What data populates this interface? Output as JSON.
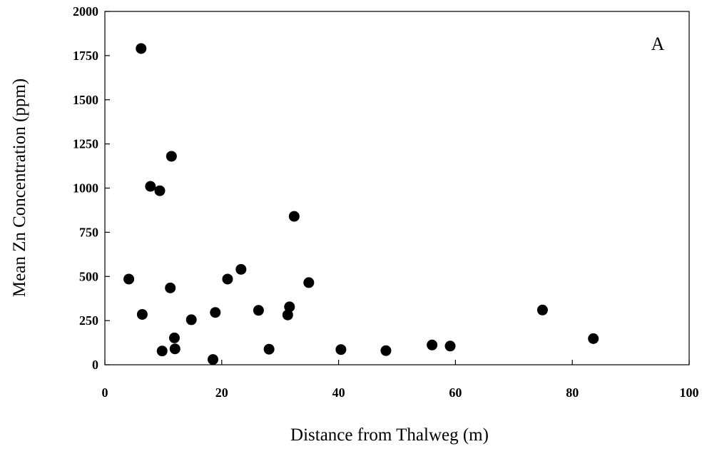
{
  "chart_data": {
    "type": "scatter",
    "panel_label": "A",
    "xlabel": "Distance from Thalweg (m)",
    "ylabel": "Mean Zn Concentration (ppm)",
    "xlim": [
      0,
      100
    ],
    "ylim": [
      0,
      2000
    ],
    "x_ticks": [
      0,
      20,
      40,
      60,
      80,
      100
    ],
    "y_ticks": [
      0,
      250,
      500,
      750,
      1000,
      1250,
      1500,
      1750,
      2000
    ],
    "grid": false,
    "marker_color": "#000000",
    "points": [
      {
        "x": 6.2,
        "y": 1790
      },
      {
        "x": 11.4,
        "y": 1180
      },
      {
        "x": 7.8,
        "y": 1010
      },
      {
        "x": 9.4,
        "y": 985
      },
      {
        "x": 32.4,
        "y": 840
      },
      {
        "x": 23.3,
        "y": 540
      },
      {
        "x": 4.1,
        "y": 485
      },
      {
        "x": 21.0,
        "y": 485
      },
      {
        "x": 34.9,
        "y": 465
      },
      {
        "x": 11.2,
        "y": 435
      },
      {
        "x": 31.6,
        "y": 328
      },
      {
        "x": 26.3,
        "y": 308
      },
      {
        "x": 74.9,
        "y": 310
      },
      {
        "x": 18.9,
        "y": 296
      },
      {
        "x": 6.4,
        "y": 285
      },
      {
        "x": 31.3,
        "y": 282
      },
      {
        "x": 14.8,
        "y": 255
      },
      {
        "x": 11.9,
        "y": 152
      },
      {
        "x": 83.6,
        "y": 148
      },
      {
        "x": 56.0,
        "y": 112
      },
      {
        "x": 59.1,
        "y": 106
      },
      {
        "x": 12.0,
        "y": 90
      },
      {
        "x": 28.1,
        "y": 88
      },
      {
        "x": 40.4,
        "y": 86
      },
      {
        "x": 48.1,
        "y": 80
      },
      {
        "x": 9.8,
        "y": 78
      },
      {
        "x": 18.5,
        "y": 30
      }
    ]
  }
}
